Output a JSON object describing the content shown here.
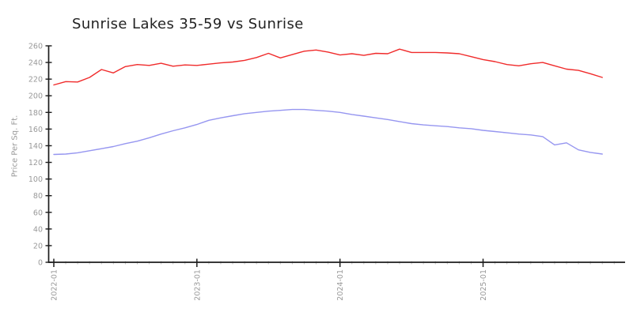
{
  "header": {
    "title": "Sunrise Lakes 35-59 vs Sunrise"
  },
  "style": {
    "axis_color": "#1c1c1c",
    "tick_label_color": "#999999",
    "minor_tick_color": "#c4c4c4",
    "title_color": "#222222",
    "red_line_color": "#f02b2b",
    "blue_line_color": "#9696f0"
  },
  "chart_data": {
    "type": "line",
    "title": "Sunrise Lakes 35-59 vs Sunrise",
    "xlabel": "",
    "ylabel": "Price Per Sq. Ft.",
    "ylim": [
      0,
      260
    ],
    "ytick_step": 20,
    "grid": false,
    "legend": "none",
    "x": [
      "2022-01",
      "2022-02",
      "2022-03",
      "2022-04",
      "2022-05",
      "2022-06",
      "2022-07",
      "2022-08",
      "2022-09",
      "2022-10",
      "2022-11",
      "2022-12",
      "2023-01",
      "2023-02",
      "2023-03",
      "2023-04",
      "2023-05",
      "2023-06",
      "2023-07",
      "2023-08",
      "2023-09",
      "2023-10",
      "2023-11",
      "2023-12",
      "2024-01",
      "2024-02",
      "2024-03",
      "2024-04",
      "2024-05",
      "2024-06",
      "2024-07",
      "2024-08",
      "2024-09",
      "2024-10",
      "2024-11",
      "2024-12",
      "2025-01",
      "2025-02",
      "2025-03",
      "2025-04",
      "2025-05",
      "2025-06",
      "2025-07",
      "2025-08",
      "2025-09",
      "2025-10",
      "2025-11"
    ],
    "x_major_tick_indices": [
      0,
      12,
      24,
      36
    ],
    "x_major_tick_labels": [
      "2022-01",
      "2023-01",
      "2024-01",
      "2025-01"
    ],
    "series": [
      {
        "name": "series-red",
        "color": "#f02b2b",
        "values": [
          213,
          217,
          216.5,
          222,
          231.5,
          227.5,
          235,
          237.5,
          236.5,
          239,
          235.5,
          237,
          236.5,
          238,
          239.5,
          240.5,
          242.5,
          246,
          251,
          245.5,
          249.5,
          253.5,
          255,
          252.5,
          249,
          250.5,
          248.5,
          251,
          250.5,
          256,
          252,
          252,
          252,
          251.5,
          250.5,
          247,
          243.5,
          241,
          237.5,
          236,
          238.5,
          240,
          236,
          232,
          230.5,
          226.5,
          222
        ]
      },
      {
        "name": "series-blue",
        "color": "#9696f0",
        "values": [
          129.5,
          130,
          131.5,
          134,
          136.5,
          139,
          142.5,
          145.5,
          149.5,
          154,
          158,
          161.5,
          165.5,
          170.5,
          173.5,
          176,
          178.5,
          180,
          181.5,
          182.5,
          183.5,
          183.5,
          182.5,
          181.5,
          180,
          177.5,
          175.5,
          173.5,
          171.5,
          169,
          166.5,
          165,
          164,
          163,
          161.5,
          160.5,
          158.5,
          157,
          155.5,
          154,
          153,
          151,
          141,
          143.5,
          135,
          132,
          130
        ]
      }
    ]
  }
}
